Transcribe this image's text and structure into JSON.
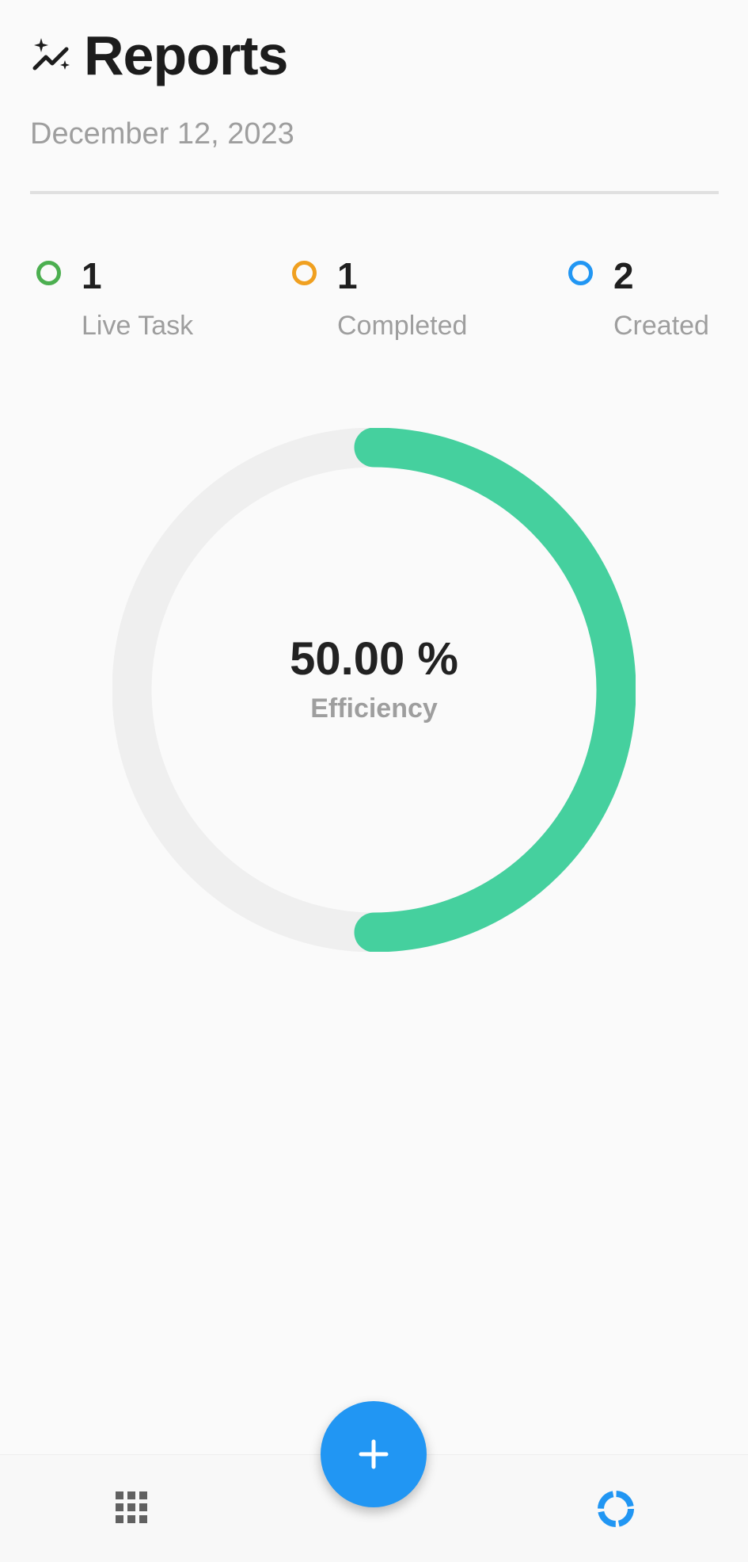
{
  "header": {
    "title": "Reports",
    "icon": "sparkle-chart-icon"
  },
  "date": "December 12, 2023",
  "stats": [
    {
      "value": "1",
      "label": "Live Task",
      "color": "#4caf50"
    },
    {
      "value": "1",
      "label": "Completed",
      "color": "#f0a020"
    },
    {
      "value": "2",
      "label": "Created",
      "color": "#2196f3"
    }
  ],
  "efficiency": {
    "value_text": "50.00 %",
    "label": "Efficiency",
    "fraction": 0.5,
    "track_color": "#efefef",
    "fill_color": "#45d09e"
  },
  "bottom_nav": {
    "left_icon": "grid-icon",
    "right_icon": "donut-chart-icon",
    "fab_icon": "plus-icon",
    "accent": "#2196f3"
  }
}
